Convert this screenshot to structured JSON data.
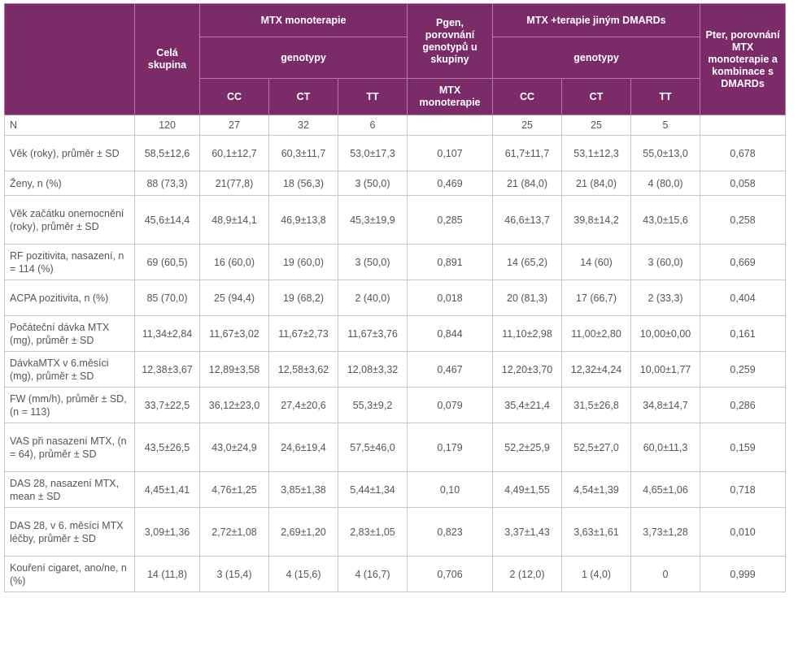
{
  "header": {
    "whole_group": "Celá skupina",
    "mtx_mono": "MTX monoterapie",
    "genotypes_mono": "genotypy",
    "genotypes_mono_cols": [
      "CC",
      "CT",
      "TT"
    ],
    "pgen_top": "Pgen, porovnání genotypů u skupiny",
    "pgen_bottom": "MTX monoterapie",
    "mtx_combo": "MTX +terapie jiným DMARDs",
    "genotypes_combo": "genotypy",
    "genotypes_combo_cols": [
      "CC",
      "CT",
      "TT"
    ],
    "pter": "Pter, porovnání MTX monoterapie a kombinace s DMARDs"
  },
  "table": {
    "rows": [
      [
        "N",
        "120",
        "27",
        "32",
        "6",
        null,
        "25",
        "25",
        "5",
        null
      ],
      [
        "Věk (roky), průměr ± SD",
        "58,5±12,6",
        "60,1±12,7",
        "60,3±11,7",
        "53,0±17,3",
        "0,107",
        "61,7±11,7",
        "53,1±12,3",
        "55,0±13,0",
        "0,678"
      ],
      [
        "Ženy, n (%)",
        "88 (73,3)",
        "21(77,8)",
        "18 (56,3)",
        "3 (50,0)",
        "0,469",
        "21 (84,0)",
        "21 (84,0)",
        "4 (80,0)",
        "0,058"
      ],
      [
        "Věk začátku onemocnění (roky), průměr ± SD",
        "45,6±14,4",
        "48,9±14,1",
        "46,9±13,8",
        "45,3±19,9",
        "0,285",
        "46,6±13,7",
        "39,8±14,2",
        "43,0±15,6",
        "0,258"
      ],
      [
        "RF pozitivita, nasazení, n = 114 (%)",
        "69 (60,5)",
        "16 (60,0)",
        "19 (60,0)",
        "3 (50,0)",
        "0,891",
        "14 (65,2)",
        "14 (60)",
        "3 (60,0)",
        "0,669"
      ],
      [
        "ACPA pozitivita, n (%)",
        "85 (70,0)",
        "25 (94,4)",
        "19 (68,2)",
        "2 (40,0)",
        "0,018",
        "20 (81,3)",
        "17 (66,7)",
        "2 (33,3)",
        "0,404"
      ],
      [
        "Počáteční dávka MTX (mg), průměr ± SD",
        "11,34±2,84",
        "11,67±3,02",
        "11,67±2,73",
        "11,67±3,76",
        "0,844",
        "11,10±2,98",
        "11,00±2,80",
        "10,00±0,00",
        "0,161"
      ],
      [
        "DávkaMTX v 6.měsíci (mg), průměr ± SD",
        "12,38±3,67",
        "12,89±3,58",
        "12,58±3,62",
        "12,08±3,32",
        "0,467",
        "12,20±3,70",
        "12,32±4,24",
        "10,00±1,77",
        "0,259"
      ],
      [
        "FW (mm/h), průměr ± SD, (n = 113)",
        "33,7±22,5",
        "36,12±23,0",
        "27,4±20,6",
        "55,3±9,2",
        "0,079",
        "35,4±21,4",
        "31,5±26,8",
        "34,8±14,7",
        "0,286"
      ],
      [
        "VAS při nasazení MTX, (n = 64), průměr ± SD",
        "43,5±26,5",
        "43,0±24,9",
        "24,6±19,4",
        "57,5±46,0",
        "0,179",
        "52,2±25,9",
        "52,5±27,0",
        "60,0±11,3",
        "0,159"
      ],
      [
        "DAS 28, nasazení MTX, mean ± SD",
        "4,45±1,41",
        "4,76±1,25",
        "3,85±1,38",
        "5,44±1,34",
        "0,10",
        "4,49±1,55",
        "4,54±1,39",
        "4,65±1,06",
        "0,718"
      ],
      [
        "DAS 28, v 6. měsíci MTX léčby, průměr ± SD",
        "3,09±1,36",
        "2,72±1,08",
        "2,69±1,20",
        "2,83±1,05",
        "0,823",
        "3,37±1,43",
        "3,63±1,61",
        "3,73±1,28",
        "0,010"
      ],
      [
        "Kouření cigaret, ano/ne, n (%)",
        "14 (11,8)",
        "3 (15,4)",
        "4 (15,6)",
        "4 (16,7)",
        "0,706",
        "2 (12,0)",
        "1 (4,0)",
        "0",
        "0,999"
      ]
    ]
  }
}
